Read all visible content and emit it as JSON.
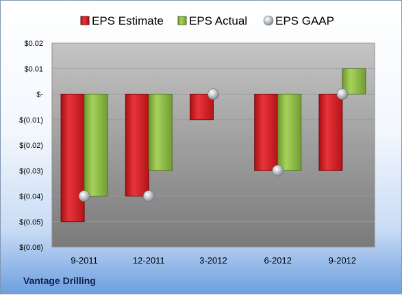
{
  "chart_data": {
    "type": "bar",
    "categories": [
      "9-2011",
      "12-2011",
      "3-2012",
      "6-2012",
      "9-2012"
    ],
    "series": [
      {
        "name": "EPS Estimate",
        "color": "#d9262b",
        "values": [
          -0.05,
          -0.04,
          -0.01,
          -0.03,
          -0.03
        ]
      },
      {
        "name": "EPS Actual",
        "color": "#92c24c",
        "values": [
          -0.04,
          -0.03,
          null,
          -0.03,
          0.01
        ]
      },
      {
        "name": "EPS GAAP",
        "color": "#b9bcc2",
        "marker": "sphere",
        "values": [
          -0.04,
          -0.04,
          0.0,
          -0.03,
          0.0
        ]
      }
    ],
    "yticks": [
      0.02,
      0.01,
      0.0,
      -0.01,
      -0.02,
      -0.03,
      -0.04,
      -0.05,
      -0.06
    ],
    "ytick_labels": [
      "$0.02",
      "$0.01",
      "$-",
      "$(0.01)",
      "$(0.02)",
      "$(0.03)",
      "$(0.04)",
      "$(0.05)",
      "$(0.06)"
    ],
    "ylim": [
      -0.06,
      0.02
    ],
    "grid": true,
    "legend_position": "top"
  },
  "footer": {
    "company": "Vantage Drilling"
  }
}
